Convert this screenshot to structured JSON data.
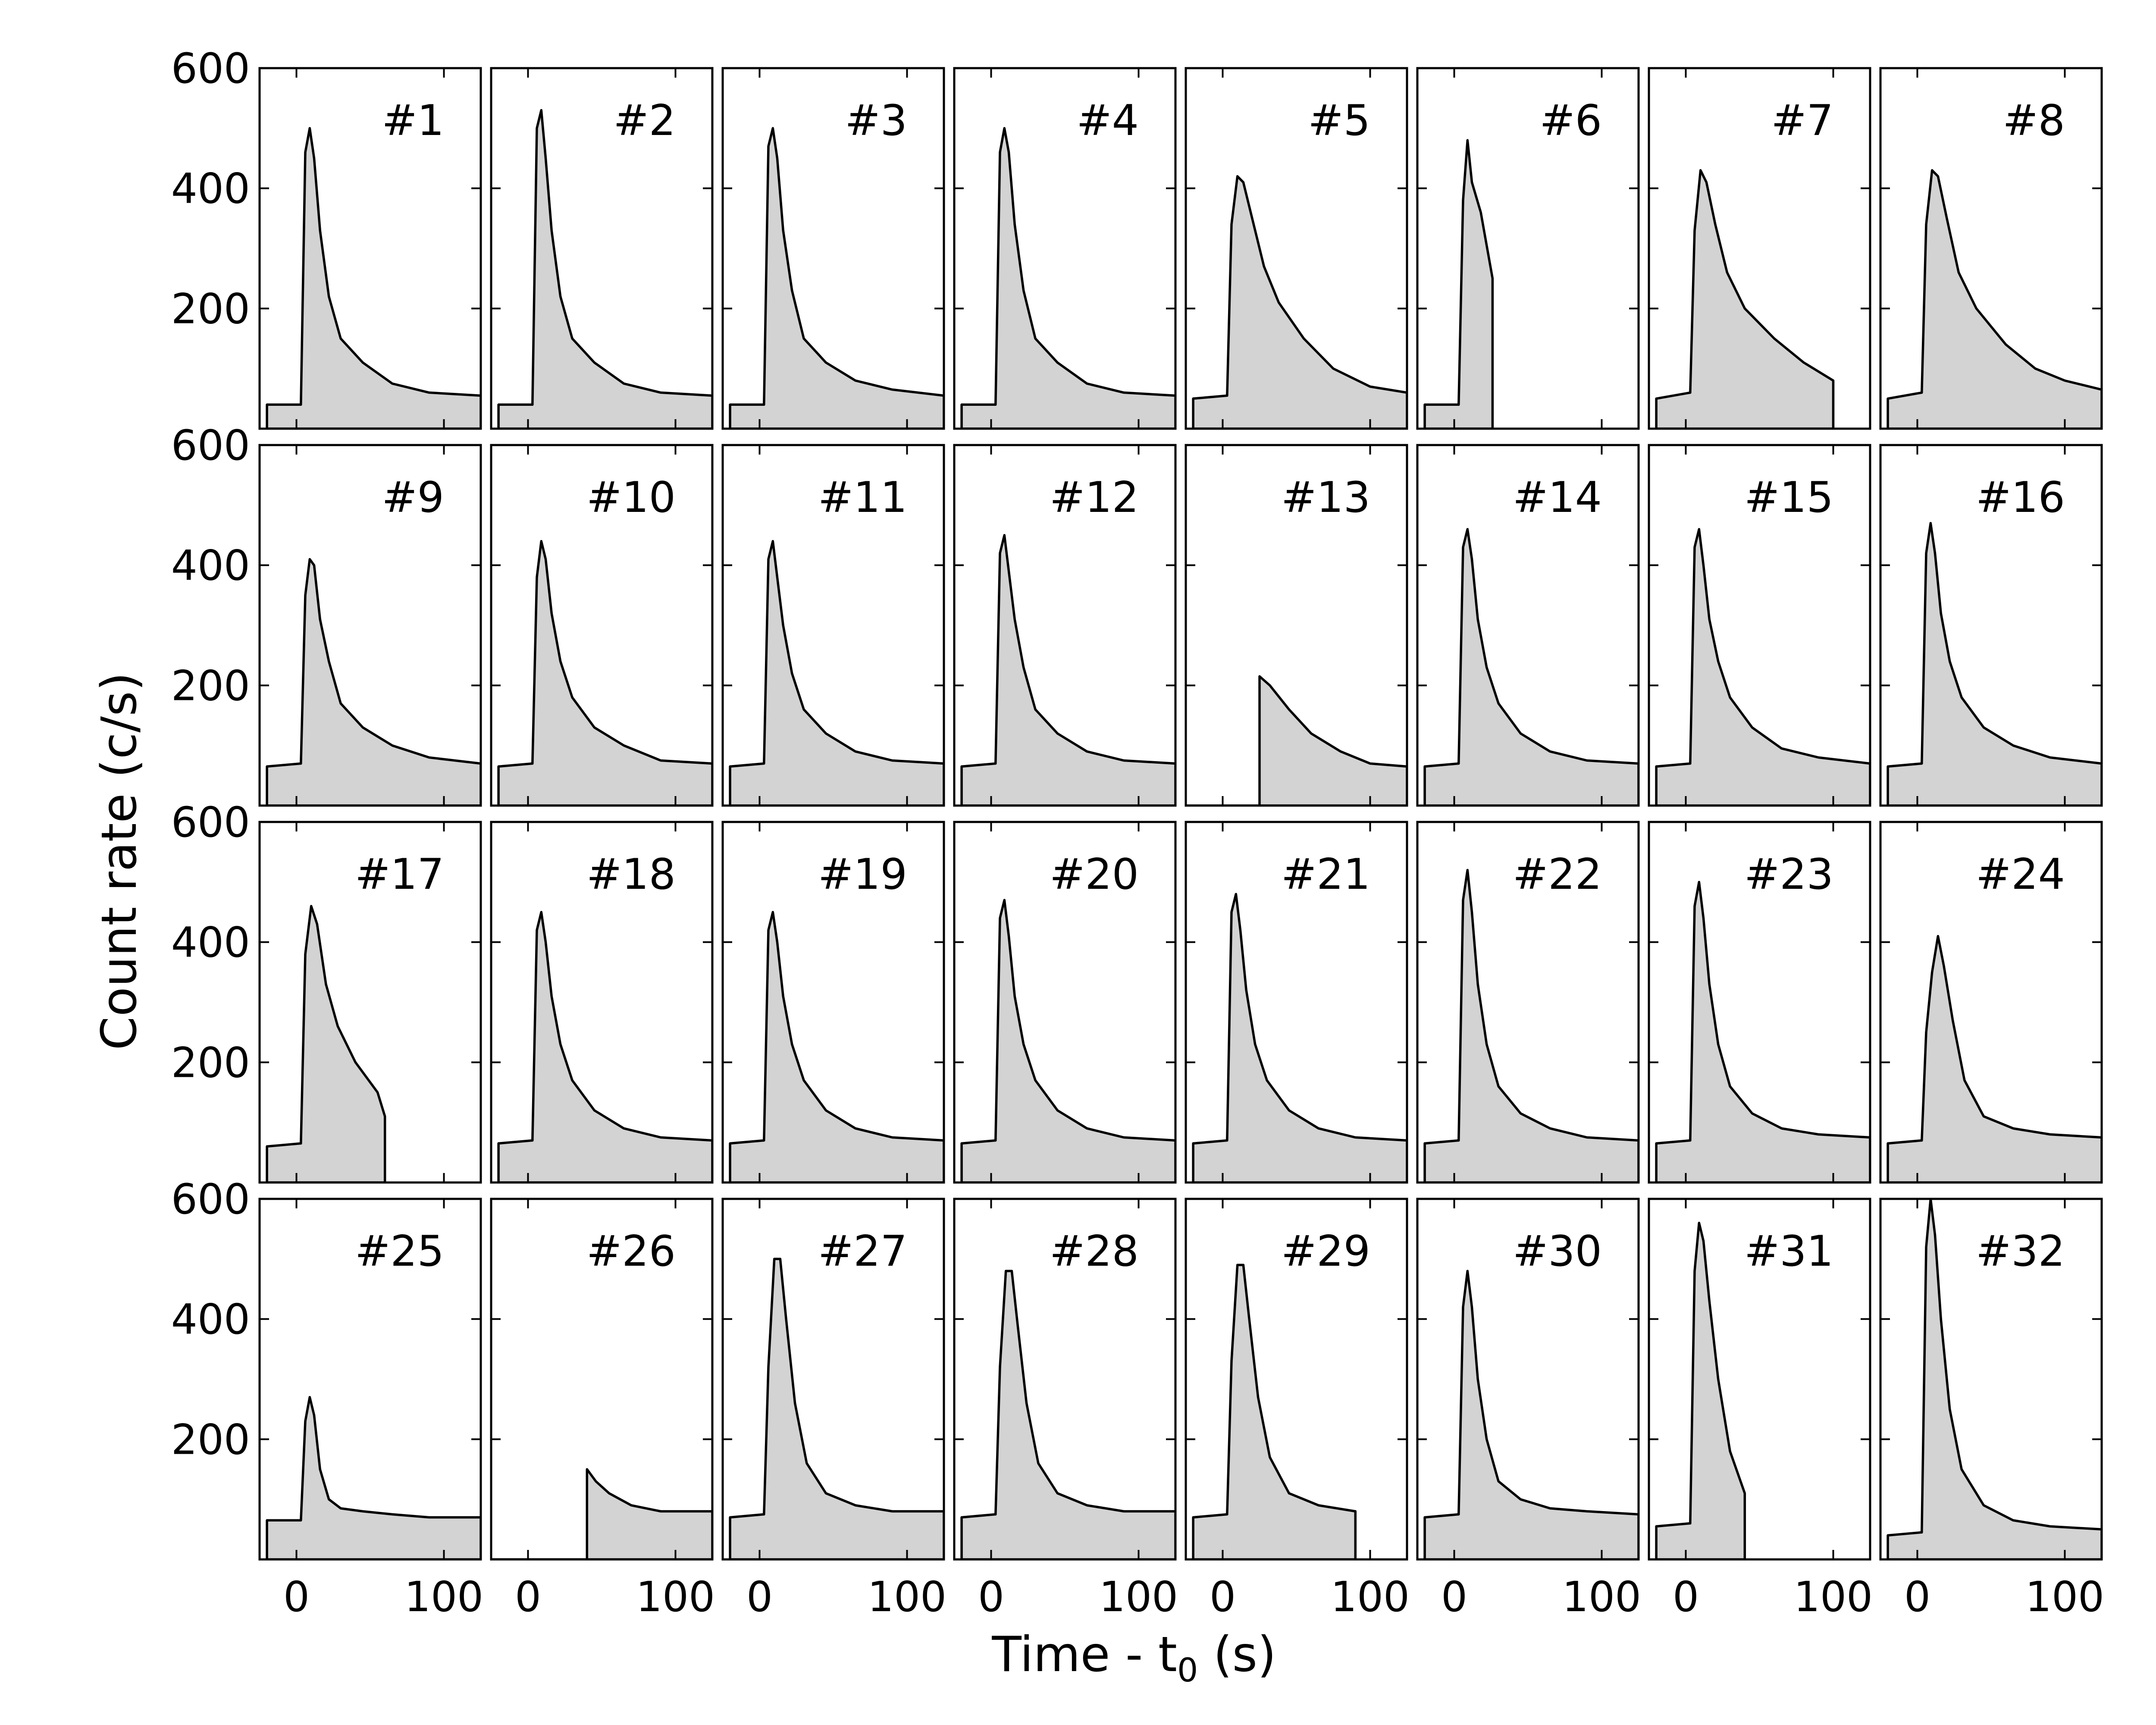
{
  "chart_data": {
    "type": "area",
    "xlabel_text": "Time - t",
    "xlabel_sub": "0",
    "xlabel_unit": " (s)",
    "ylabel": "Count rate (c/s)",
    "xlim": [
      -25,
      125
    ],
    "ylim": [
      0,
      600
    ],
    "x_ticks": [
      0,
      100
    ],
    "y_ticks": [
      200,
      400,
      600
    ],
    "fill_color": "#d3d3d3",
    "line_color": "#000000",
    "grid": false,
    "panels": [
      {
        "label": "#1",
        "x": [
          -20,
          3,
          6,
          9,
          12,
          16,
          22,
          30,
          45,
          65,
          90,
          125
        ],
        "y": [
          40,
          40,
          460,
          500,
          450,
          330,
          220,
          150,
          110,
          75,
          60,
          55
        ]
      },
      {
        "label": "#2",
        "x": [
          -20,
          3,
          6,
          9,
          12,
          16,
          22,
          30,
          45,
          65,
          90,
          125
        ],
        "y": [
          40,
          40,
          500,
          530,
          450,
          330,
          220,
          150,
          110,
          75,
          60,
          55
        ]
      },
      {
        "label": "#3",
        "x": [
          -20,
          3,
          6,
          9,
          12,
          16,
          22,
          30,
          45,
          65,
          90,
          125
        ],
        "y": [
          40,
          40,
          470,
          500,
          450,
          330,
          230,
          150,
          110,
          80,
          65,
          55
        ]
      },
      {
        "label": "#4",
        "x": [
          -20,
          3,
          6,
          9,
          12,
          16,
          22,
          30,
          45,
          65,
          90,
          125
        ],
        "y": [
          40,
          40,
          460,
          500,
          460,
          340,
          230,
          150,
          110,
          75,
          60,
          55
        ]
      },
      {
        "label": "#5",
        "x": [
          -20,
          3,
          6,
          10,
          14,
          20,
          28,
          38,
          55,
          75,
          100,
          125
        ],
        "y": [
          50,
          55,
          340,
          420,
          410,
          350,
          270,
          210,
          150,
          100,
          70,
          60
        ]
      },
      {
        "label": "#6",
        "x": [
          -20,
          3,
          6,
          9,
          12,
          18,
          26,
          26
        ],
        "y": [
          40,
          40,
          380,
          480,
          410,
          360,
          250,
          0
        ]
      },
      {
        "label": "#7",
        "x": [
          -20,
          3,
          6,
          10,
          14,
          20,
          28,
          40,
          60,
          80,
          100,
          100
        ],
        "y": [
          50,
          60,
          330,
          430,
          410,
          340,
          260,
          200,
          150,
          110,
          80,
          0
        ]
      },
      {
        "label": "#8",
        "x": [
          -20,
          3,
          6,
          10,
          14,
          20,
          28,
          40,
          60,
          80,
          100,
          125
        ],
        "y": [
          50,
          60,
          340,
          430,
          420,
          350,
          260,
          200,
          140,
          100,
          80,
          65
        ]
      },
      {
        "label": "#9",
        "x": [
          -20,
          3,
          6,
          9,
          12,
          16,
          22,
          30,
          45,
          65,
          90,
          125
        ],
        "y": [
          65,
          70,
          350,
          410,
          400,
          310,
          240,
          170,
          130,
          100,
          80,
          70
        ]
      },
      {
        "label": "#10",
        "x": [
          -20,
          3,
          6,
          9,
          12,
          16,
          22,
          30,
          45,
          65,
          90,
          125
        ],
        "y": [
          65,
          70,
          380,
          440,
          410,
          320,
          240,
          180,
          130,
          100,
          75,
          70
        ]
      },
      {
        "label": "#11",
        "x": [
          -20,
          3,
          6,
          9,
          12,
          16,
          22,
          30,
          45,
          65,
          90,
          125
        ],
        "y": [
          65,
          70,
          410,
          440,
          380,
          300,
          220,
          160,
          120,
          90,
          75,
          70
        ]
      },
      {
        "label": "#12",
        "x": [
          -20,
          3,
          6,
          9,
          12,
          16,
          22,
          30,
          45,
          65,
          90,
          125
        ],
        "y": [
          65,
          70,
          420,
          450,
          390,
          310,
          230,
          160,
          120,
          90,
          75,
          70
        ]
      },
      {
        "label": "#13",
        "x": [
          -25,
          25,
          25,
          32,
          45,
          60,
          80,
          100,
          125
        ],
        "y": [
          0,
          0,
          215,
          200,
          160,
          120,
          90,
          70,
          65
        ]
      },
      {
        "label": "#14",
        "x": [
          -20,
          3,
          6,
          9,
          12,
          16,
          22,
          30,
          45,
          65,
          90,
          125
        ],
        "y": [
          65,
          70,
          430,
          460,
          410,
          310,
          230,
          170,
          120,
          90,
          75,
          70
        ]
      },
      {
        "label": "#15",
        "x": [
          -20,
          3,
          6,
          9,
          12,
          16,
          22,
          30,
          45,
          65,
          90,
          125
        ],
        "y": [
          65,
          70,
          430,
          460,
          400,
          310,
          240,
          180,
          130,
          95,
          80,
          70
        ]
      },
      {
        "label": "#16",
        "x": [
          -20,
          3,
          6,
          9,
          12,
          16,
          22,
          30,
          45,
          65,
          90,
          125
        ],
        "y": [
          65,
          70,
          420,
          470,
          420,
          320,
          240,
          180,
          130,
          100,
          80,
          70
        ]
      },
      {
        "label": "#17",
        "x": [
          -20,
          3,
          6,
          10,
          14,
          20,
          28,
          40,
          55,
          60,
          60
        ],
        "y": [
          60,
          65,
          380,
          460,
          430,
          330,
          260,
          200,
          150,
          110,
          0
        ]
      },
      {
        "label": "#18",
        "x": [
          -20,
          3,
          6,
          9,
          12,
          16,
          22,
          30,
          45,
          65,
          90,
          125
        ],
        "y": [
          65,
          70,
          420,
          450,
          400,
          310,
          230,
          170,
          120,
          90,
          75,
          70
        ]
      },
      {
        "label": "#19",
        "x": [
          -20,
          3,
          6,
          9,
          12,
          16,
          22,
          30,
          45,
          65,
          90,
          125
        ],
        "y": [
          65,
          70,
          420,
          450,
          400,
          310,
          230,
          170,
          120,
          90,
          75,
          70
        ]
      },
      {
        "label": "#20",
        "x": [
          -20,
          3,
          6,
          9,
          12,
          16,
          22,
          30,
          45,
          65,
          90,
          125
        ],
        "y": [
          65,
          70,
          440,
          470,
          410,
          310,
          230,
          170,
          120,
          90,
          75,
          70
        ]
      },
      {
        "label": "#21",
        "x": [
          -20,
          3,
          6,
          9,
          12,
          16,
          22,
          30,
          45,
          65,
          90,
          125
        ],
        "y": [
          65,
          70,
          450,
          480,
          420,
          320,
          230,
          170,
          120,
          90,
          75,
          70
        ]
      },
      {
        "label": "#22",
        "x": [
          -20,
          3,
          6,
          9,
          12,
          16,
          22,
          30,
          45,
          65,
          90,
          125
        ],
        "y": [
          65,
          70,
          470,
          520,
          450,
          330,
          230,
          160,
          115,
          90,
          75,
          70
        ]
      },
      {
        "label": "#23",
        "x": [
          -20,
          3,
          6,
          9,
          12,
          16,
          22,
          30,
          45,
          65,
          90,
          125
        ],
        "y": [
          65,
          70,
          460,
          500,
          440,
          330,
          230,
          160,
          115,
          90,
          80,
          75
        ]
      },
      {
        "label": "#24",
        "x": [
          -20,
          3,
          6,
          10,
          14,
          18,
          24,
          32,
          45,
          65,
          90,
          125
        ],
        "y": [
          65,
          70,
          250,
          350,
          410,
          360,
          270,
          170,
          110,
          90,
          80,
          75
        ]
      },
      {
        "label": "#25",
        "x": [
          -20,
          3,
          6,
          9,
          12,
          16,
          22,
          30,
          45,
          65,
          90,
          125
        ],
        "y": [
          65,
          65,
          230,
          270,
          240,
          150,
          100,
          85,
          80,
          75,
          70,
          70
        ]
      },
      {
        "label": "#26",
        "x": [
          -25,
          40,
          40,
          46,
          55,
          70,
          90,
          110,
          125
        ],
        "y": [
          0,
          0,
          150,
          130,
          110,
          90,
          80,
          80,
          80
        ]
      },
      {
        "label": "#27",
        "x": [
          -20,
          3,
          6,
          10,
          14,
          18,
          24,
          32,
          45,
          65,
          90,
          125
        ],
        "y": [
          70,
          75,
          320,
          500,
          500,
          400,
          260,
          160,
          110,
          90,
          80,
          80
        ]
      },
      {
        "label": "#28",
        "x": [
          -20,
          3,
          6,
          10,
          14,
          18,
          24,
          32,
          45,
          65,
          90,
          125
        ],
        "y": [
          70,
          75,
          320,
          480,
          480,
          390,
          260,
          160,
          110,
          90,
          80,
          80
        ]
      },
      {
        "label": "#29",
        "x": [
          -20,
          3,
          6,
          10,
          14,
          18,
          24,
          32,
          45,
          65,
          90,
          90
        ],
        "y": [
          70,
          75,
          330,
          490,
          490,
          400,
          270,
          170,
          110,
          90,
          80,
          0
        ]
      },
      {
        "label": "#30",
        "x": [
          -20,
          3,
          6,
          9,
          12,
          16,
          22,
          30,
          45,
          65,
          90,
          125
        ],
        "y": [
          70,
          75,
          420,
          480,
          420,
          300,
          200,
          130,
          100,
          85,
          80,
          75
        ]
      },
      {
        "label": "#31",
        "x": [
          -20,
          3,
          6,
          9,
          12,
          16,
          22,
          30,
          40,
          40
        ],
        "y": [
          55,
          60,
          480,
          560,
          530,
          430,
          300,
          180,
          110,
          0
        ]
      },
      {
        "label": "#32",
        "x": [
          -20,
          3,
          6,
          9,
          12,
          16,
          22,
          30,
          45,
          65,
          90,
          125
        ],
        "y": [
          40,
          45,
          520,
          600,
          540,
          400,
          250,
          150,
          90,
          65,
          55,
          50
        ]
      }
    ]
  }
}
